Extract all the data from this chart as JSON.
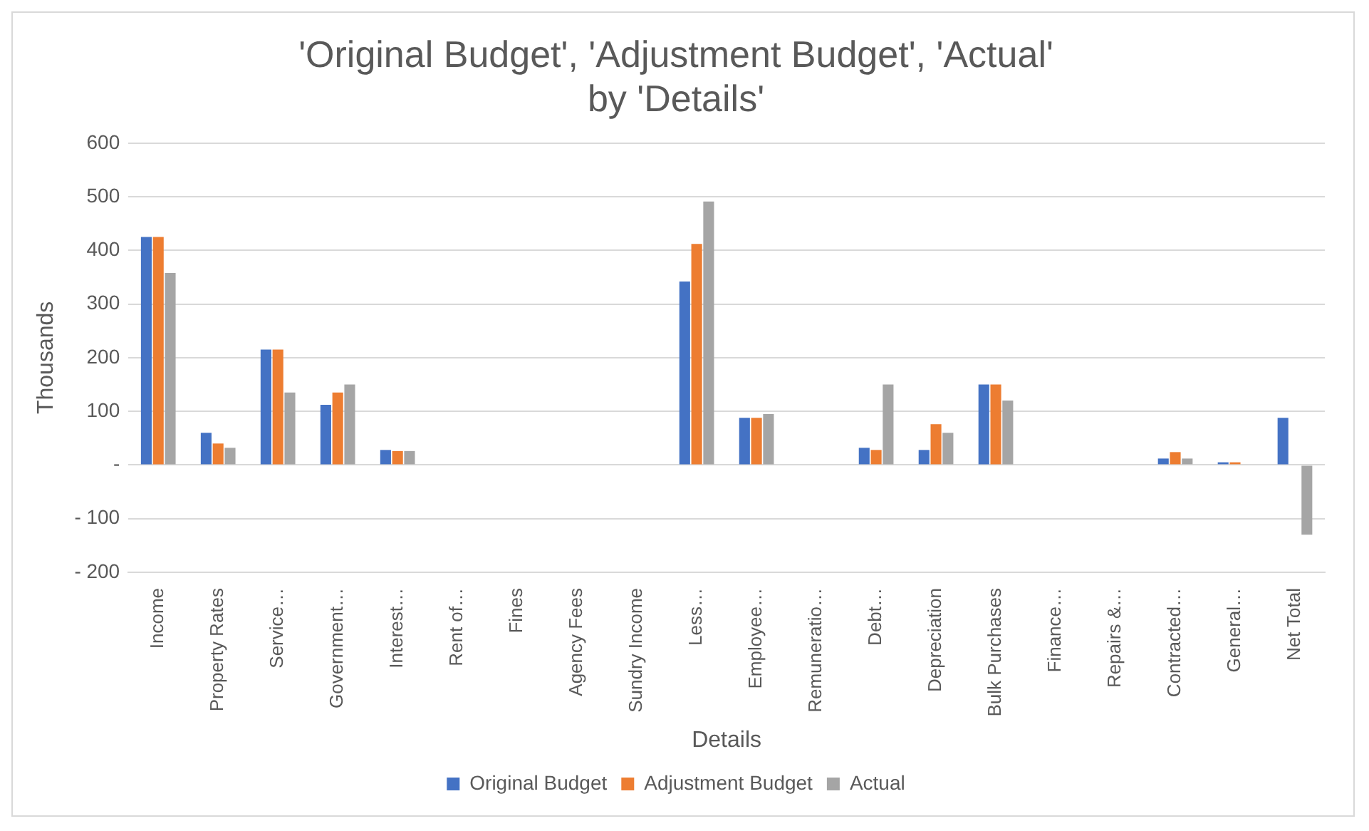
{
  "chart_data": {
    "type": "bar",
    "title": "'Original Budget', 'Adjustment Budget', 'Actual' by 'Details'",
    "xlabel": "Details",
    "ylabel": "Thousands",
    "categories": [
      "Income",
      "Property Rates",
      "Service…",
      "Government…",
      "Interest…",
      "Rent of…",
      "Fines",
      "Agency Fees",
      "Sundry Income",
      "Less…",
      "Employee…",
      "Remuneratio…",
      "Debt…",
      "Depreciation",
      "Bulk Purchases",
      "Finance…",
      "Repairs &…",
      "Contracted…",
      "General…",
      "Net Total"
    ],
    "series": [
      {
        "name": "Original Budget",
        "color": "#4472c4",
        "values": [
          425,
          60,
          215,
          112,
          28,
          0,
          0,
          0,
          0,
          342,
          88,
          0,
          32,
          28,
          150,
          0,
          0,
          12,
          5,
          88
        ]
      },
      {
        "name": "Adjustment Budget",
        "color": "#ed7d31",
        "values": [
          425,
          40,
          215,
          135,
          26,
          0,
          0,
          0,
          0,
          412,
          88,
          0,
          28,
          76,
          150,
          0,
          0,
          24,
          5,
          0
        ]
      },
      {
        "name": "Actual",
        "color": "#a5a5a5",
        "values": [
          358,
          32,
          135,
          150,
          26,
          0,
          0,
          0,
          0,
          491,
          95,
          0,
          150,
          60,
          120,
          null,
          null,
          12,
          null,
          -130
        ]
      }
    ],
    "ylim": [
      -200,
      600
    ],
    "yticks": [
      600,
      500,
      400,
      300,
      200,
      100,
      {
        "value": 0,
        "label": "-"
      },
      {
        "value": -100,
        "label": "- 100"
      },
      {
        "value": -200,
        "label": "- 200"
      }
    ],
    "grid": "y",
    "legend": "bottom"
  }
}
